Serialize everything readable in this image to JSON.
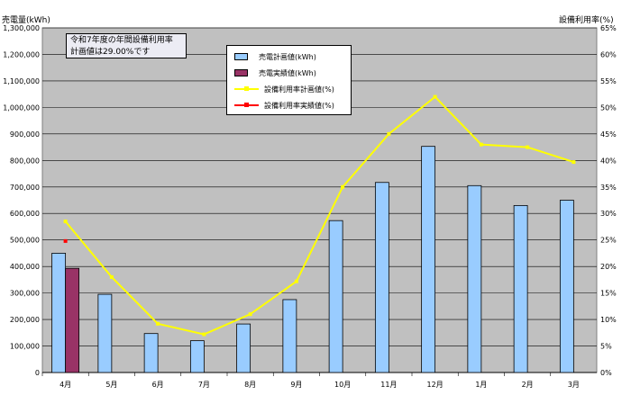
{
  "left_axis_title": "売電量(kWh)",
  "right_axis_title": "設備利用率(%)",
  "note": {
    "line1": "令和7年度の年間設備利用率",
    "line2": "計画値は29.00%です"
  },
  "colors": {
    "plot_bg": "#c0c0c0",
    "plan_bar": "#99ccff",
    "actual_bar": "#993366",
    "plan_line": "#ffff00",
    "actual_marker": "#ff0000"
  },
  "legend": [
    {
      "label": "売電計画値(kWh)",
      "kind": "bar",
      "color": "#99ccff"
    },
    {
      "label": "売電実績値(kWh)",
      "kind": "bar",
      "color": "#993366"
    },
    {
      "label": "設備利用率計画値(%)",
      "kind": "line",
      "color": "#ffff00"
    },
    {
      "label": "設備利用率実績値(%)",
      "kind": "line",
      "color": "#ff0000"
    }
  ],
  "chart_data": {
    "type": "bar",
    "categories": [
      "4月",
      "5月",
      "6月",
      "7月",
      "8月",
      "9月",
      "10月",
      "11月",
      "12月",
      "1月",
      "2月",
      "3月"
    ],
    "left_ylim": [
      0,
      1300000
    ],
    "left_ticks": [
      "0",
      "100,000",
      "200,000",
      "300,000",
      "400,000",
      "500,000",
      "600,000",
      "700,000",
      "800,000",
      "900,000",
      "1,000,000",
      "1,100,000",
      "1,200,000",
      "1,300,000"
    ],
    "right_ylim": [
      0,
      65
    ],
    "right_ticks": [
      "0%",
      "5%",
      "10%",
      "15%",
      "20%",
      "25%",
      "30%",
      "35%",
      "40%",
      "45%",
      "50%",
      "55%",
      "60%",
      "65%"
    ],
    "series": [
      {
        "name": "売電計画値(kWh)",
        "type": "bar",
        "axis": "left",
        "values": [
          450000,
          295000,
          147000,
          120000,
          183000,
          275000,
          573000,
          717000,
          853000,
          705000,
          630000,
          650000
        ]
      },
      {
        "name": "売電実績値(kWh)",
        "type": "bar",
        "axis": "left",
        "values": [
          393000,
          null,
          null,
          null,
          null,
          null,
          null,
          null,
          null,
          null,
          null,
          null
        ]
      },
      {
        "name": "設備利用率計画値(%)",
        "type": "line",
        "axis": "right",
        "values": [
          28.5,
          18.0,
          9.2,
          7.2,
          11.0,
          17.2,
          35.0,
          45.0,
          52.0,
          43.0,
          42.5,
          39.7
        ]
      },
      {
        "name": "設備利用率実績値(%)",
        "type": "line",
        "axis": "right",
        "values": [
          24.8,
          null,
          null,
          null,
          null,
          null,
          null,
          null,
          null,
          null,
          null,
          null
        ]
      }
    ],
    "grid": true,
    "legend_position": "top-center"
  }
}
